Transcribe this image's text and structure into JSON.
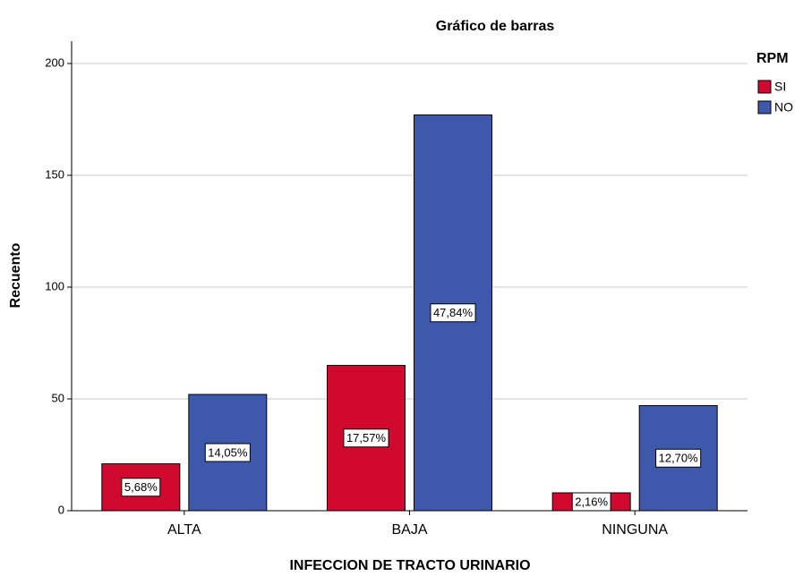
{
  "chart_data": {
    "type": "bar",
    "title": "Gráfico de barras",
    "x_label": "INFECCION DE TRACTO URINARIO",
    "y_label": "Recuento",
    "legend_title": "RPM",
    "categories": [
      "ALTA",
      "BAJA",
      "NINGUNA"
    ],
    "series": [
      {
        "name": "SI",
        "color": "#d2092f",
        "values": [
          21,
          65,
          8
        ],
        "value_labels": [
          "5,68%",
          "17,57%",
          "2,16%"
        ]
      },
      {
        "name": "NO",
        "color": "#3e58ab",
        "values": [
          52,
          177,
          47
        ],
        "value_labels": [
          "14,05%",
          "47,84%",
          "12,70%"
        ]
      }
    ],
    "ylim": [
      0,
      210
    ],
    "yticks": [
      0,
      50,
      100,
      150,
      200
    ],
    "grid": true,
    "legend": "right"
  }
}
